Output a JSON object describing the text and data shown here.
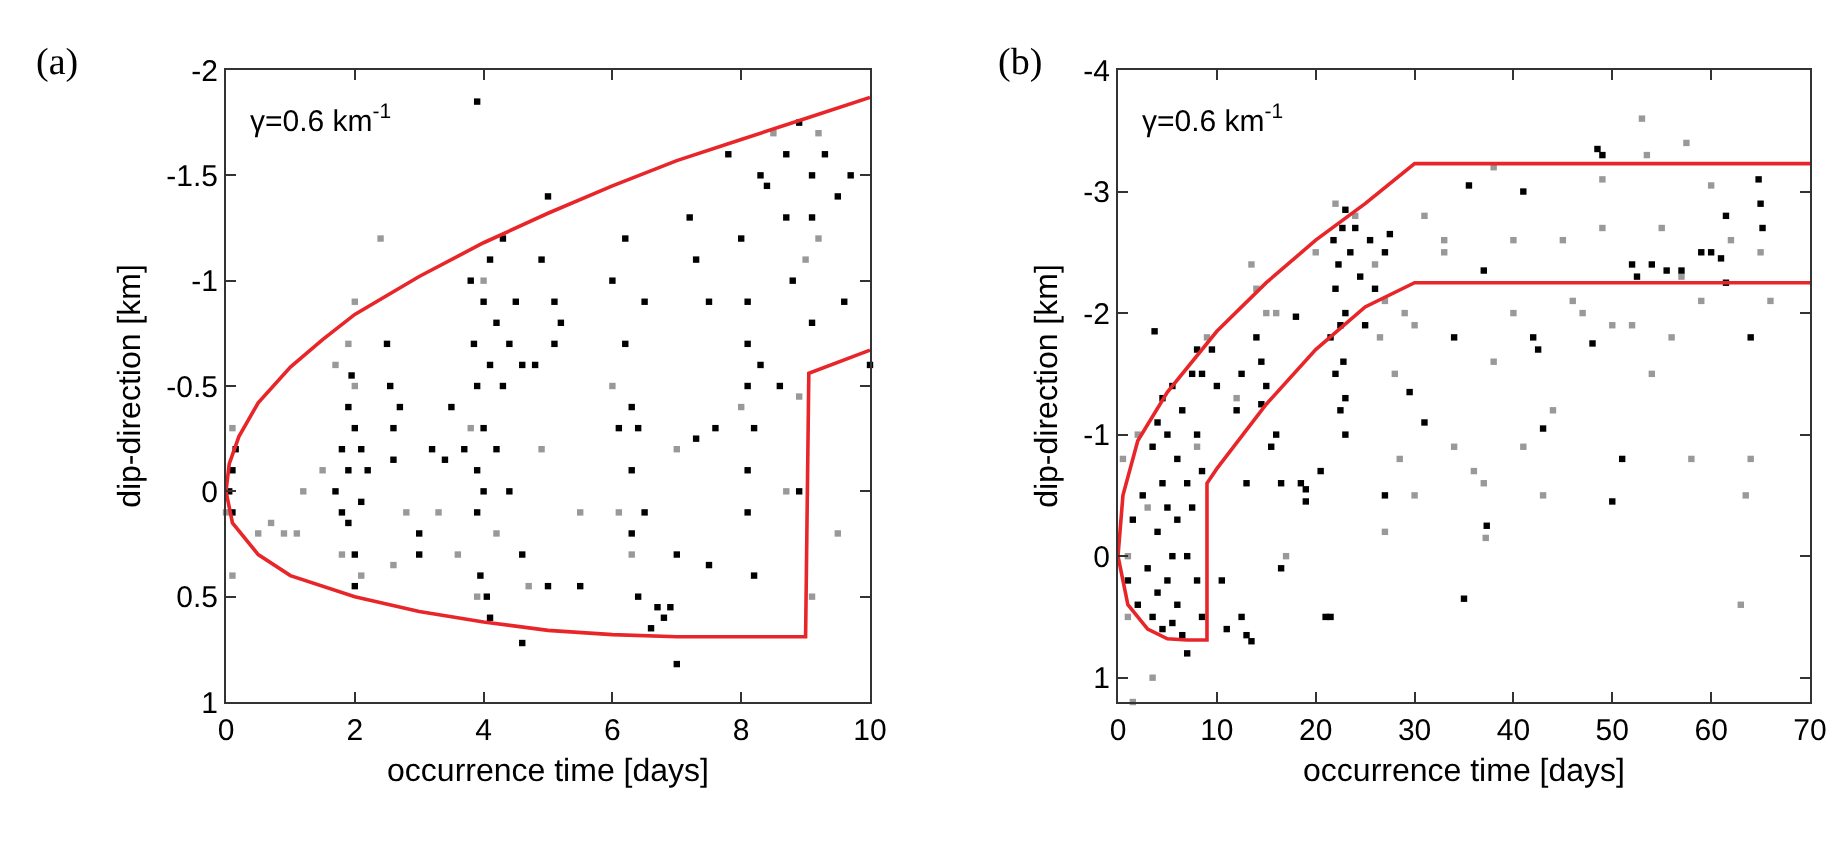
{
  "chart_data": [
    {
      "type": "scatter",
      "xlabel": "occurrence time [days]",
      "ylabel": "dip-direction [km]",
      "annotations": [
        "(a)",
        "γ=0.6 km$^{-1}$"
      ],
      "xlim": [
        0,
        10
      ],
      "ylim": [
        1,
        -2
      ],
      "xticks": [
        0,
        2,
        4,
        6,
        8,
        10
      ],
      "yticks": [
        -2,
        -1.5,
        -1,
        -0.5,
        0,
        0.5,
        1
      ],
      "marker": "square",
      "series": [
        {
          "color": "#999999",
          "x": [
            0.0,
            0.1,
            0.1,
            0.5,
            0.7,
            0.9,
            1.1,
            1.2,
            1.5,
            1.7,
            1.8,
            1.9,
            2.0,
            2.1,
            2.4,
            2.6,
            2.8,
            3.3,
            3.6,
            3.8,
            3.9,
            4.0,
            4.2,
            4.7,
            4.9,
            5.5,
            6.0,
            6.1,
            6.3,
            7.0,
            8.0,
            8.5,
            8.7,
            9.0,
            9.2,
            9.2,
            9.5,
            8.9,
            9.1,
            2.0
          ],
          "values": [
            0.1,
            -0.3,
            0.4,
            0.2,
            0.15,
            0.2,
            0.2,
            0.0,
            -0.1,
            -0.6,
            0.3,
            -0.7,
            -0.9,
            0.4,
            -1.2,
            0.35,
            0.1,
            0.1,
            0.3,
            -0.3,
            0.5,
            -1.0,
            0.2,
            0.45,
            -0.2,
            0.1,
            -0.5,
            0.1,
            0.3,
            -0.2,
            -0.4,
            -1.7,
            0.0,
            -1.1,
            -1.2,
            -1.7,
            0.2,
            -0.45,
            0.5,
            -0.5
          ]
        },
        {
          "color": "#000000",
          "x": [
            0.05,
            0.1,
            0.1,
            0.15,
            1.7,
            1.8,
            1.8,
            1.9,
            1.9,
            1.9,
            2.0,
            2.0,
            2.0,
            2.1,
            2.1,
            2.2,
            1.95,
            2.5,
            2.55,
            2.6,
            2.6,
            2.7,
            3.0,
            3.0,
            3.2,
            3.4,
            3.5,
            3.7,
            3.8,
            3.85,
            3.9,
            3.9,
            3.9,
            3.95,
            4.0,
            4.0,
            4.0,
            4.05,
            4.1,
            4.1,
            4.1,
            4.2,
            4.2,
            4.3,
            4.3,
            4.4,
            4.4,
            4.5,
            4.6,
            4.6,
            3.9,
            4.8,
            4.9,
            5.0,
            5.1,
            5.1,
            5.2,
            5.0,
            4.6,
            6.0,
            6.1,
            6.2,
            6.2,
            6.3,
            6.3,
            6.3,
            6.4,
            6.4,
            6.5,
            6.5,
            6.6,
            6.7,
            6.8,
            6.9,
            7.0,
            5.5,
            7.2,
            7.3,
            7.5,
            7.3,
            7.6,
            7.5,
            7.8,
            7.0,
            8.0,
            8.1,
            8.1,
            8.1,
            8.1,
            8.1,
            8.2,
            8.2,
            8.3,
            8.3,
            8.4,
            8.6,
            8.7,
            8.7,
            8.8,
            8.9,
            9.1,
            9.1,
            9.1,
            9.3,
            9.5,
            9.6,
            9.7,
            10.0,
            8.9
          ],
          "values": [
            0.0,
            -0.1,
            0.1,
            -0.2,
            0.0,
            -0.2,
            0.1,
            -0.4,
            -0.1,
            0.15,
            -0.3,
            0.3,
            0.45,
            -0.2,
            0.05,
            -0.1,
            -0.55,
            -0.7,
            -0.5,
            -0.3,
            -0.15,
            -0.4,
            0.2,
            0.3,
            -0.2,
            -0.15,
            -0.4,
            -0.2,
            -1.0,
            -0.7,
            -0.5,
            -0.1,
            0.1,
            0.4,
            -0.9,
            -0.3,
            0.0,
            0.5,
            -1.1,
            -0.6,
            0.6,
            -0.8,
            -0.2,
            -1.2,
            -0.5,
            -0.7,
            0.0,
            -0.9,
            -0.6,
            0.3,
            -1.85,
            -0.6,
            -1.1,
            -1.4,
            -0.9,
            -0.7,
            -0.8,
            0.45,
            0.72,
            -1.0,
            -0.3,
            -1.2,
            -0.7,
            -0.4,
            -0.1,
            0.2,
            -0.3,
            0.5,
            -0.9,
            0.1,
            0.65,
            0.55,
            0.6,
            0.55,
            0.82,
            0.45,
            -1.3,
            -1.1,
            -0.9,
            -0.25,
            -0.3,
            0.35,
            -1.6,
            0.3,
            -1.2,
            -0.9,
            -0.7,
            -0.5,
            -0.1,
            0.1,
            -0.3,
            0.4,
            -0.6,
            -1.5,
            -1.45,
            -0.5,
            -1.3,
            -1.6,
            -1.0,
            -1.75,
            -1.5,
            -1.3,
            -0.8,
            -1.6,
            -1.4,
            -0.9,
            -1.5,
            -0.6,
            0.0
          ]
        },
        {
          "type": "line",
          "marker": "none",
          "color": "#e8262a",
          "x": [
            10,
            9,
            8,
            7,
            6,
            5,
            4,
            3,
            2,
            1.5,
            1,
            0.5,
            0.2,
            0.05,
            0,
            0.1,
            0.5,
            1,
            2,
            3,
            4,
            5,
            6,
            7,
            9,
            9.05,
            10
          ],
          "values": [
            -1.87,
            -1.77,
            -1.67,
            -1.57,
            -1.45,
            -1.32,
            -1.18,
            -1.02,
            -0.84,
            -0.72,
            -0.59,
            -0.42,
            -0.26,
            -0.13,
            0,
            0.15,
            0.3,
            0.4,
            0.5,
            0.57,
            0.62,
            0.66,
            0.68,
            0.69,
            0.69,
            -0.56,
            -0.67
          ]
        }
      ]
    },
    {
      "type": "scatter",
      "xlabel": "occurrence time [days]",
      "ylabel": "dip-direction [km]",
      "annotations": [
        "(b)",
        "γ=0.6 km$^{-1}$"
      ],
      "xlim": [
        0,
        70
      ],
      "ylim": [
        1.2,
        -4
      ],
      "xticks": [
        0,
        10,
        20,
        30,
        40,
        50,
        60,
        70
      ],
      "yticks": [
        -4,
        -3,
        -2,
        -1,
        0,
        1
      ],
      "marker": "square",
      "series": [
        {
          "color": "#999999",
          "x": [
            0.5,
            1,
            1,
            2,
            3,
            3.5,
            1.5,
            8,
            9,
            12,
            13.5,
            14,
            15,
            16,
            17,
            20,
            22,
            24,
            26,
            26.5,
            27,
            27,
            28,
            28.5,
            29,
            30,
            30,
            31,
            33,
            33,
            34,
            36,
            37,
            37.2,
            38,
            38,
            40,
            40,
            41,
            43,
            44,
            45,
            46,
            47,
            49,
            49,
            50,
            52,
            53,
            53.5,
            54,
            55,
            56,
            57,
            57.5,
            58,
            59,
            60,
            62,
            63.5,
            63,
            64,
            66,
            65
          ],
          "values": [
            -0.8,
            0.0,
            0.5,
            -1.0,
            -0.4,
            1.0,
            1.2,
            -0.9,
            -1.8,
            -1.3,
            -2.4,
            -2.2,
            -2.0,
            -2.0,
            0.0,
            -2.5,
            -2.9,
            -2.8,
            -2.4,
            -1.8,
            -2.1,
            -0.2,
            -1.5,
            -0.8,
            -2.0,
            -0.5,
            -1.9,
            -2.8,
            -2.6,
            -2.5,
            -0.9,
            -0.7,
            -0.6,
            -0.15,
            -3.2,
            -1.6,
            -2.0,
            -2.6,
            -0.9,
            -0.5,
            -1.2,
            -2.6,
            -2.1,
            -2.0,
            -2.7,
            -3.1,
            -1.9,
            -1.9,
            -3.6,
            -3.3,
            -1.5,
            -2.7,
            -1.8,
            -2.3,
            -3.4,
            -0.8,
            -2.1,
            -3.05,
            -2.6,
            -0.5,
            0.4,
            -0.8,
            -2.1,
            -2.5
          ]
        },
        {
          "color": "#000000",
          "x": [
            1,
            1.5,
            2,
            2.5,
            3,
            3.5,
            3.5,
            4,
            4,
            4,
            4.5,
            4.5,
            4.5,
            5,
            5,
            5,
            5.5,
            5.5,
            5.5,
            6,
            6,
            6,
            6.5,
            6.5,
            7,
            7,
            7,
            7.5,
            7.5,
            8,
            8,
            8,
            8.5,
            8.5,
            8.5,
            3.7,
            9.5,
            10,
            10.5,
            11,
            12,
            12.5,
            12.5,
            13,
            13.5,
            13,
            14,
            14.5,
            14.5,
            15,
            15.5,
            16,
            16.5,
            16.5,
            18,
            18.5,
            19,
            19,
            20.5,
            21,
            21.5,
            21.8,
            22,
            22,
            22.3,
            22.5,
            22.5,
            22.7,
            22.8,
            23,
            23,
            23,
            23.5,
            24,
            24.5,
            25,
            25.5,
            26,
            27,
            27.5,
            23,
            27,
            29.5,
            31,
            35.5,
            37,
            37.3,
            35,
            34,
            41,
            42,
            42.5,
            43,
            48,
            48.5,
            49,
            50,
            51,
            52,
            52.5,
            54,
            55.5,
            57,
            59,
            60,
            61,
            61.5,
            64,
            64.8,
            65,
            65.2,
            61.5,
            21.5
          ],
          "values": [
            0.2,
            -0.3,
            0.4,
            -0.5,
            0.1,
            -0.9,
            0.5,
            -1.1,
            -0.2,
            0.3,
            -1.3,
            -0.6,
            0.6,
            -1.0,
            -0.4,
            0.2,
            -1.4,
            0.0,
            0.55,
            -0.8,
            -0.3,
            0.4,
            -1.2,
            0.65,
            -0.6,
            0.0,
            0.8,
            -1.5,
            -0.4,
            -1.7,
            -1.0,
            0.2,
            -1.5,
            -0.7,
            0.5,
            -1.85,
            -1.7,
            -1.4,
            0.2,
            0.6,
            -1.2,
            -1.5,
            0.5,
            0.65,
            0.7,
            -0.6,
            -1.8,
            -1.6,
            -1.25,
            -1.4,
            -0.9,
            -1.0,
            0.1,
            -0.6,
            -1.97,
            -0.6,
            -0.55,
            -0.45,
            -0.7,
            0.5,
            -1.8,
            -2.6,
            -2.2,
            -1.5,
            -2.4,
            -1.9,
            -1.2,
            -2.7,
            -1.6,
            -2.85,
            -2.0,
            -1.3,
            -2.5,
            -2.7,
            -2.3,
            -1.9,
            -2.6,
            -2.2,
            -2.5,
            -2.65,
            -1.0,
            -0.5,
            -1.35,
            -1.1,
            -3.05,
            -2.35,
            -0.25,
            0.35,
            -1.8,
            -3.0,
            -1.8,
            -1.7,
            -1.05,
            -1.75,
            -3.35,
            -3.3,
            -0.45,
            -0.8,
            -2.4,
            -2.3,
            -2.4,
            -2.35,
            -2.35,
            -2.5,
            -2.5,
            -2.45,
            -2.8,
            -1.8,
            -3.1,
            -2.9,
            -2.7,
            -2.25,
            0.5
          ]
        },
        {
          "type": "line",
          "marker": "none",
          "color": "#e8262a",
          "x": [
            70,
            30,
            25,
            20,
            15,
            10,
            5,
            2,
            0.5,
            0,
            1,
            3,
            5,
            7,
            9,
            9,
            10,
            15,
            20,
            25,
            30,
            70
          ],
          "values": [
            -3.23,
            -3.23,
            -2.9,
            -2.6,
            -2.25,
            -1.85,
            -1.35,
            -0.95,
            -0.5,
            0,
            0.4,
            0.6,
            0.68,
            0.69,
            0.69,
            -0.6,
            -0.72,
            -1.25,
            -1.7,
            -2.05,
            -2.25,
            -2.25
          ]
        }
      ]
    }
  ]
}
